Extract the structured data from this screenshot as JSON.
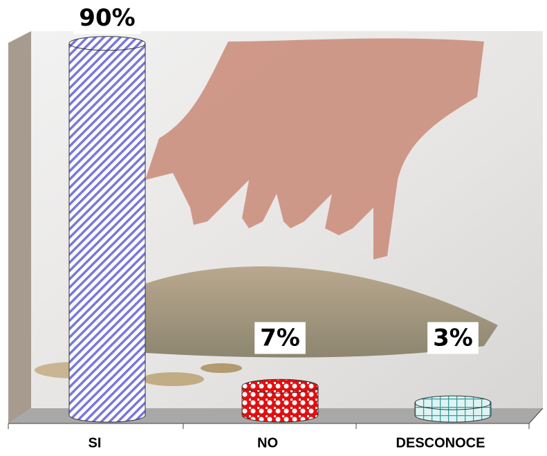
{
  "chart_data": {
    "type": "bar3d",
    "categories": [
      "SI",
      "NO",
      "DESCONOCE"
    ],
    "values": [
      90,
      7,
      3
    ],
    "value_labels": [
      "90%",
      "7%",
      "3%"
    ],
    "colors": [
      "#7878dc",
      "#e01010",
      "#2f9c9c"
    ]
  }
}
